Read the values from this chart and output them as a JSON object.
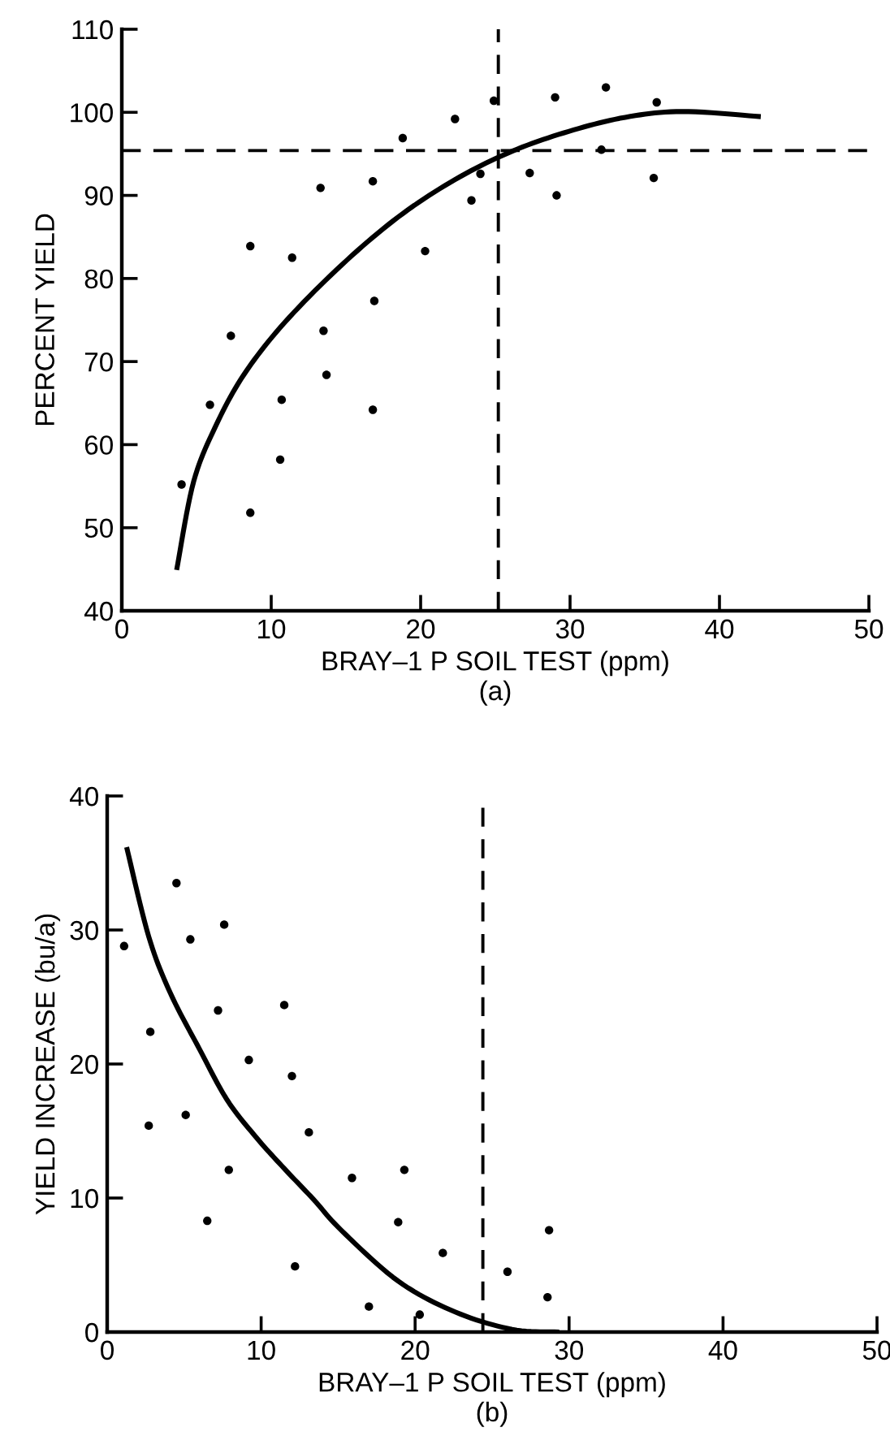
{
  "chart_data": [
    {
      "type": "scatter",
      "xlabel": "BRAY–1 P SOIL TEST (ppm)",
      "ylabel": "PERCENT YIELD",
      "annotations": [
        "(a)"
      ],
      "xlim": [
        0,
        50
      ],
      "ylim": [
        40,
        110
      ],
      "xticks": [
        0,
        10,
        20,
        30,
        40,
        50
      ],
      "yticks": [
        40,
        50,
        60,
        70,
        80,
        90,
        100,
        110
      ],
      "grid": false,
      "legend": false,
      "marker": "circle",
      "series": [
        {
          "type": "scatter",
          "color": "#000000",
          "x": [
            4.0,
            5.9,
            7.3,
            8.6,
            8.6,
            10.7,
            10.6,
            11.4,
            13.3,
            13.5,
            13.7,
            16.8,
            16.9,
            16.8,
            18.8,
            20.3,
            22.3,
            23.4,
            24.0,
            24.9,
            27.3,
            29.0,
            29.1,
            32.4,
            32.1,
            35.8,
            35.6
          ],
          "values": [
            55.2,
            64.8,
            73.1,
            83.9,
            51.8,
            65.4,
            58.2,
            82.5,
            90.9,
            73.7,
            68.4,
            91.7,
            77.3,
            64.2,
            96.9,
            83.3,
            99.2,
            89.4,
            92.6,
            101.4,
            92.7,
            101.8,
            90.0,
            103.0,
            95.5,
            101.2,
            92.1
          ]
        },
        {
          "type": "line",
          "color": "#000000",
          "marker": "none",
          "line_style": "solid",
          "x": [
            3.7,
            4.8,
            6.3,
            8.2,
            10.9,
            14.7,
            18.5,
            22.3,
            26.1,
            29.9,
            33.7,
            37.5,
            42.6
          ],
          "values": [
            45.2,
            55.5,
            62.3,
            68.5,
            74.7,
            81.6,
            87.4,
            91.9,
            95.3,
            97.7,
            99.4,
            100.1,
            99.5
          ]
        }
      ],
      "ref_lines": [
        {
          "axis": "y",
          "value": 95.4,
          "color": "#000000",
          "line_style": "dashed"
        },
        {
          "axis": "x",
          "value": 25.2,
          "color": "#000000",
          "line_style": "dashed"
        }
      ]
    },
    {
      "type": "scatter",
      "xlabel": "BRAY–1 P SOIL TEST (ppm)",
      "ylabel": "YIELD INCREASE (bu/a)",
      "annotations": [
        "(b)"
      ],
      "xlim": [
        0,
        50
      ],
      "ylim": [
        0,
        40
      ],
      "xticks": [
        0,
        10,
        20,
        30,
        40,
        50
      ],
      "yticks": [
        0,
        10,
        20,
        30,
        40
      ],
      "grid": false,
      "legend": false,
      "marker": "circle",
      "series": [
        {
          "type": "scatter",
          "color": "#000000",
          "x": [
            1.1,
            2.8,
            2.7,
            4.5,
            5.4,
            5.1,
            7.6,
            7.2,
            6.5,
            7.9,
            9.2,
            11.5,
            12.0,
            12.2,
            13.1,
            15.9,
            17.0,
            19.3,
            18.9,
            20.3,
            21.8,
            26.0,
            28.7,
            28.6
          ],
          "values": [
            28.8,
            22.4,
            15.4,
            33.5,
            29.3,
            16.2,
            30.4,
            24.0,
            8.3,
            12.1,
            20.3,
            24.4,
            19.1,
            4.9,
            14.9,
            11.5,
            1.9,
            12.1,
            8.2,
            1.3,
            5.9,
            4.5,
            7.6,
            2.6
          ]
        },
        {
          "type": "line",
          "color": "#000000",
          "marker": "none",
          "line_style": "solid",
          "x": [
            1.3,
            2.7,
            4.1,
            6.0,
            7.8,
            9.7,
            11.5,
            13.4,
            15.2,
            18.9,
            22.6,
            26.3,
            29.2
          ],
          "values": [
            36.0,
            29.5,
            25.3,
            21.1,
            17.3,
            14.5,
            12.2,
            9.9,
            7.6,
            3.8,
            1.5,
            0.2,
            0
          ]
        }
      ],
      "ref_lines": [
        {
          "axis": "x",
          "value": 24.4,
          "color": "#000000",
          "line_style": "dashed"
        }
      ]
    }
  ]
}
